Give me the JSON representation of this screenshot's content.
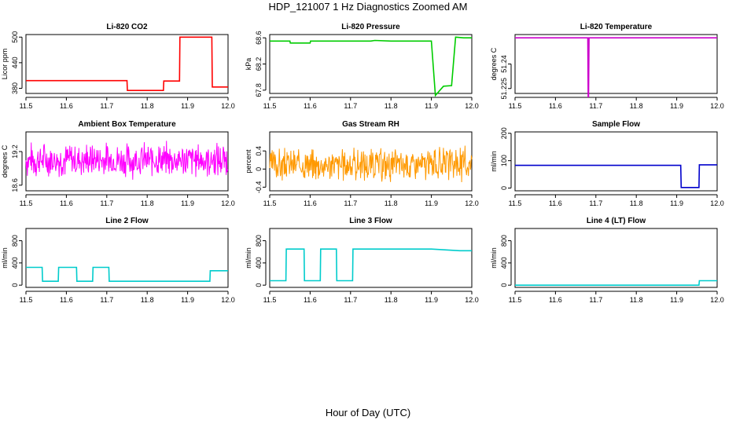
{
  "figure": {
    "title": "HDP_121007  1 Hz Diagnostics Zoomed AM",
    "xlabel": "Hour of Day (UTC)"
  },
  "chart_data": [
    {
      "type": "line",
      "title": "Li-820 CO2",
      "ylabel": "Licor ppm",
      "color": "#ff0000",
      "xlim": [
        11.5,
        12.0
      ],
      "ylim": [
        368,
        506
      ],
      "xticks": [
        11.5,
        11.6,
        11.7,
        11.8,
        11.9,
        12.0
      ],
      "yticks": [
        380,
        440,
        500
      ],
      "x": [
        11.5,
        11.75,
        11.751,
        11.84,
        11.841,
        11.88,
        11.881,
        11.93,
        11.931,
        11.96,
        11.961,
        12.0
      ],
      "y": [
        398,
        398,
        375,
        375,
        397,
        397,
        500,
        500,
        500,
        500,
        383,
        383
      ],
      "style": "step"
    },
    {
      "type": "line",
      "title": "Li-820 Pressure",
      "ylabel": "kPa",
      "color": "#00cc00",
      "xlim": [
        11.5,
        12.0
      ],
      "ylim": [
        67.75,
        68.65
      ],
      "xticks": [
        11.5,
        11.6,
        11.7,
        11.8,
        11.9,
        12.0
      ],
      "yticks": [
        67.8,
        68.2,
        68.6
      ],
      "x": [
        11.5,
        11.55,
        11.551,
        11.6,
        11.601,
        11.75,
        11.76,
        11.8,
        11.9,
        11.91,
        11.93,
        11.95,
        11.96,
        11.98,
        12.0
      ],
      "y": [
        68.55,
        68.55,
        68.52,
        68.52,
        68.55,
        68.55,
        68.56,
        68.55,
        68.55,
        67.72,
        67.86,
        67.87,
        68.61,
        68.6,
        68.6
      ]
    },
    {
      "type": "line",
      "title": "Li-820 Temperature",
      "ylabel": "degrees C",
      "color": "#cc00cc",
      "xlim": [
        11.5,
        12.0
      ],
      "ylim": [
        51.222,
        51.258
      ],
      "xticks": [
        11.5,
        11.6,
        11.7,
        11.8,
        11.9,
        12.0
      ],
      "yticks": [
        51.225,
        51.24
      ],
      "x": [
        11.5,
        11.68,
        11.681,
        11.682,
        11.683,
        12.0
      ],
      "y": [
        51.256,
        51.256,
        51.22,
        51.22,
        51.256,
        51.256
      ]
    },
    {
      "type": "line",
      "title": "Ambient Box Temperature",
      "ylabel": "degrees C",
      "color": "#ff00ff",
      "xlim": [
        11.5,
        12.0
      ],
      "ylim": [
        18.5,
        19.55
      ],
      "xticks": [
        11.5,
        11.6,
        11.7,
        11.8,
        11.9,
        12.0
      ],
      "yticks": [
        18.6,
        19.2
      ],
      "noise": {
        "center": 19.05,
        "amp": 0.3,
        "seed": 7
      }
    },
    {
      "type": "line",
      "title": "Gas Stream RH",
      "ylabel": "percent",
      "color": "#ff9900",
      "xlim": [
        11.5,
        12.0
      ],
      "ylim": [
        -0.48,
        0.82
      ],
      "xticks": [
        11.5,
        11.6,
        11.7,
        11.8,
        11.9,
        12.0
      ],
      "yticks": [
        -0.4,
        0.0,
        0.4
      ],
      "noise": {
        "center": 0.1,
        "amp": 0.35,
        "seed": 3
      }
    },
    {
      "type": "line",
      "title": "Sample Flow",
      "ylabel": "ml/min",
      "color": "#0000cc",
      "xlim": [
        11.5,
        12.0
      ],
      "ylim": [
        -10,
        205
      ],
      "xticks": [
        11.5,
        11.6,
        11.7,
        11.8,
        11.9,
        12.0
      ],
      "yticks": [
        0,
        100,
        200
      ],
      "x": [
        11.5,
        11.91,
        11.911,
        11.955,
        11.956,
        12.0
      ],
      "y": [
        83,
        83,
        2,
        2,
        85,
        85
      ]
    },
    {
      "type": "line",
      "title": "Line 2 Flow",
      "ylabel": "ml/min",
      "color": "#00cccc",
      "xlim": [
        11.5,
        12.0
      ],
      "ylim": [
        -40,
        1020
      ],
      "xticks": [
        11.5,
        11.6,
        11.7,
        11.8,
        11.9,
        12.0
      ],
      "yticks": [
        0,
        400,
        800
      ],
      "x": [
        11.5,
        11.54,
        11.541,
        11.58,
        11.581,
        11.625,
        11.626,
        11.665,
        11.666,
        11.705,
        11.706,
        11.955,
        11.956,
        12.0
      ],
      "y": [
        320,
        320,
        70,
        70,
        320,
        320,
        70,
        70,
        320,
        320,
        70,
        70,
        260,
        260
      ],
      "style": "step"
    },
    {
      "type": "line",
      "title": "Line 3 Flow",
      "ylabel": "ml/min",
      "color": "#00cccc",
      "xlim": [
        11.5,
        12.0
      ],
      "ylim": [
        -40,
        1020
      ],
      "xticks": [
        11.5,
        11.6,
        11.7,
        11.8,
        11.9,
        12.0
      ],
      "yticks": [
        0,
        400,
        800
      ],
      "x": [
        11.5,
        11.54,
        11.541,
        11.585,
        11.586,
        11.625,
        11.626,
        11.665,
        11.666,
        11.705,
        11.706,
        11.9,
        11.97,
        12.0
      ],
      "y": [
        80,
        80,
        650,
        650,
        80,
        80,
        650,
        650,
        80,
        80,
        650,
        650,
        620,
        620
      ],
      "style": "step"
    },
    {
      "type": "line",
      "title": "Line 4 (LT) Flow",
      "ylabel": "ml/min",
      "color": "#00cccc",
      "xlim": [
        11.5,
        12.0
      ],
      "ylim": [
        -40,
        1020
      ],
      "xticks": [
        11.5,
        11.6,
        11.7,
        11.8,
        11.9,
        12.0
      ],
      "yticks": [
        0,
        400,
        800
      ],
      "x": [
        11.5,
        11.955,
        11.956,
        12.0
      ],
      "y": [
        0,
        0,
        80,
        80
      ],
      "style": "step"
    }
  ]
}
